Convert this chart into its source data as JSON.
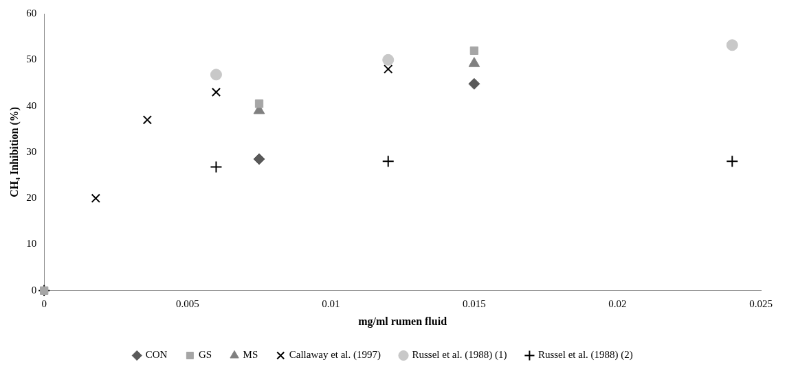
{
  "chart_data": {
    "type": "scatter",
    "xlabel": "mg/ml rumen fluid",
    "ylabel": "CH₄ Inhibition (%)",
    "xlim": [
      0,
      0.025
    ],
    "xticks": [
      0,
      0.005,
      0.01,
      0.015,
      0.02,
      0.025
    ],
    "ylim": [
      0,
      60
    ],
    "yticks": [
      0,
      10,
      20,
      30,
      40,
      50,
      60
    ],
    "grid": false,
    "legend": "bottom",
    "series": [
      {
        "name": "CON",
        "color": "#595959",
        "marker": "diamond",
        "x": [
          0.0075,
          0.015
        ],
        "values": [
          28.5,
          44.8
        ]
      },
      {
        "name": "GS",
        "color": "#a6a6a6",
        "marker": "square",
        "x": [
          0,
          0.0075,
          0.015
        ],
        "values": [
          0,
          40.5,
          52
        ]
      },
      {
        "name": "MS",
        "color": "#808080",
        "marker": "triangle",
        "x": [
          0.0075,
          0.015
        ],
        "values": [
          39,
          49.2
        ]
      },
      {
        "name": "Callaway et al. (1997)",
        "color": "#000000",
        "marker": "x",
        "x": [
          0.0018,
          0.0036,
          0.006,
          0.012
        ],
        "values": [
          20,
          37,
          43,
          48
        ]
      },
      {
        "name": "Russel et al. (1988) (1)",
        "color": "#c8c8c8",
        "marker": "circle",
        "x": [
          0.006,
          0.012,
          0.024
        ],
        "values": [
          46.8,
          50,
          53.2
        ]
      },
      {
        "name": "Russel et al. (1988) (2)",
        "color": "#000000",
        "marker": "cross",
        "x": [
          0,
          0.006,
          0.012,
          0.024
        ],
        "values": [
          0,
          26.8,
          28,
          28
        ]
      }
    ]
  }
}
